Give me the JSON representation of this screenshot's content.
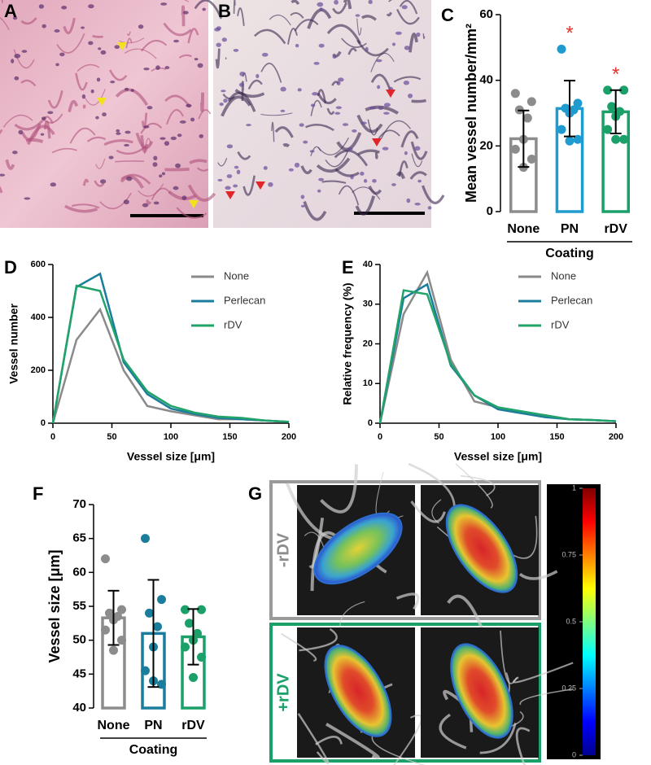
{
  "images": [
    {
      "panel": "A"
    },
    {
      "panel": "B"
    },
    {
      "panel": "G",
      "row_labels": [
        "-rDV",
        "+rDV"
      ]
    }
  ],
  "chart_data": [
    {
      "panel": "C",
      "type": "bar",
      "ylabel": "Mean vessel number/mm²",
      "categories": [
        "None",
        "PN",
        "rDV"
      ],
      "colors": [
        "#8c8c8c",
        "#1f9bcf",
        "#1aa068"
      ],
      "values": [
        22.2,
        31.4,
        30.4
      ],
      "errors": [
        8.6,
        8.5,
        6.6
      ],
      "points": [
        [
          36,
          33.5,
          31,
          28.5,
          22,
          19,
          16,
          13.5
        ],
        [
          49.5,
          33,
          31.5,
          31,
          30,
          25,
          22,
          21.5
        ],
        [
          37,
          37,
          32,
          30.5,
          29,
          25,
          22,
          22
        ]
      ],
      "significance": [
        null,
        "*",
        "*"
      ],
      "significance_color": "#e8322c",
      "group_label": "Coating",
      "ylim": [
        0,
        60
      ],
      "yticks": [
        0,
        20,
        40,
        60
      ]
    },
    {
      "panel": "D",
      "type": "line",
      "xlabel": "Vessel size [μm]",
      "ylabel": "Vessel number",
      "x": [
        0,
        20,
        40,
        60,
        80,
        100,
        120,
        140,
        160,
        180,
        200
      ],
      "series": [
        {
          "name": "None",
          "color": "#8a8a8a",
          "values": [
            0,
            315,
            430,
            200,
            65,
            45,
            30,
            15,
            15,
            10,
            5
          ]
        },
        {
          "name": "Perlecan",
          "color": "#1b7d9c",
          "values": [
            0,
            515,
            565,
            230,
            110,
            55,
            35,
            20,
            15,
            10,
            5
          ]
        },
        {
          "name": "rDV",
          "color": "#22a36a",
          "values": [
            0,
            520,
            500,
            240,
            120,
            65,
            40,
            25,
            20,
            10,
            5
          ]
        }
      ],
      "xlim": [
        0,
        200
      ],
      "xticks": [
        0,
        50,
        100,
        150,
        200
      ],
      "ylim": [
        0,
        600
      ],
      "yticks": [
        0,
        200,
        400,
        600
      ],
      "legend": "upper right"
    },
    {
      "panel": "E",
      "type": "line",
      "xlabel": "Vessel size [μm]",
      "ylabel": "Relative frequency (%)",
      "x": [
        0,
        20,
        40,
        60,
        80,
        100,
        120,
        140,
        160,
        180,
        200
      ],
      "series": [
        {
          "name": "None",
          "color": "#8a8a8a",
          "values": [
            0,
            27.5,
            38,
            16,
            5.5,
            4,
            2.5,
            2,
            1,
            0.8,
            0.5
          ]
        },
        {
          "name": "Perlecan",
          "color": "#1b7d9c",
          "values": [
            0,
            31.5,
            35,
            14.5,
            7,
            3.5,
            2.5,
            1.5,
            1,
            0.8,
            0.5
          ]
        },
        {
          "name": "rDV",
          "color": "#22a36a",
          "values": [
            0,
            33.5,
            32.5,
            15,
            7,
            4,
            3,
            2,
            1,
            0.8,
            0.5
          ]
        }
      ],
      "xlim": [
        0,
        200
      ],
      "xticks": [
        0,
        50,
        100,
        150,
        200
      ],
      "ylim": [
        0,
        40
      ],
      "yticks": [
        0,
        10,
        20,
        30,
        40
      ],
      "legend": "upper right"
    },
    {
      "panel": "F",
      "type": "bar",
      "ylabel": "Vessel size [μm]",
      "categories": [
        "None",
        "PN",
        "rDV"
      ],
      "colors": [
        "#8c8c8c",
        "#1b7d9c",
        "#1aa068"
      ],
      "values": [
        53.3,
        51,
        50.5
      ],
      "errors": [
        4,
        7.9,
        4.1
      ],
      "points": [
        [
          62,
          54.5,
          54,
          53.5,
          53,
          51.5,
          50,
          48.5
        ],
        [
          65,
          56,
          54,
          52,
          49,
          45.5,
          43.5,
          44
        ],
        [
          54.5,
          54.5,
          52.5,
          51,
          50,
          49,
          47.5,
          44.5
        ]
      ],
      "group_label": "Coating",
      "ylim": [
        40,
        70
      ],
      "yticks": [
        40,
        45,
        50,
        55,
        60,
        65,
        70
      ]
    },
    {
      "type": "colorbar",
      "ylim": [
        0,
        1
      ],
      "yticks": [
        0,
        0.25,
        0.5,
        0.75,
        1
      ]
    }
  ]
}
